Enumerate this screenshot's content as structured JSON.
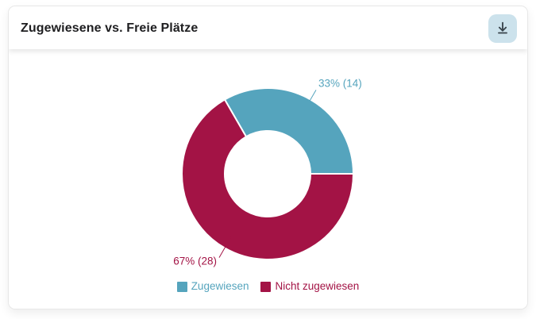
{
  "page": {
    "background_color": "#ffffff"
  },
  "card": {
    "title": "Zugewiesene vs. Freie Plätze",
    "header": {
      "download_button": {
        "icon": "download-icon",
        "background_color": "#cce2ec",
        "icon_color": "#37424a"
      }
    }
  },
  "chart_data": {
    "type": "pie",
    "variant": "doughnut",
    "title": "Zugewiesene vs. Freie Plätze",
    "categories": [
      "Zugewiesen",
      "Nicht zugewiesen"
    ],
    "values": [
      14,
      28
    ],
    "percents": [
      33,
      67
    ],
    "slice_labels": [
      "33% (14)",
      "67% (28)"
    ],
    "colors": [
      "#55a4bd",
      "#a31345"
    ],
    "border_color": "#ffffff",
    "start_angle_deg": -30,
    "inner_radius_ratio": 0.5,
    "legend_position": "bottom",
    "legend": [
      "Zugewiesen",
      "Nicht zugewiesen"
    ]
  }
}
